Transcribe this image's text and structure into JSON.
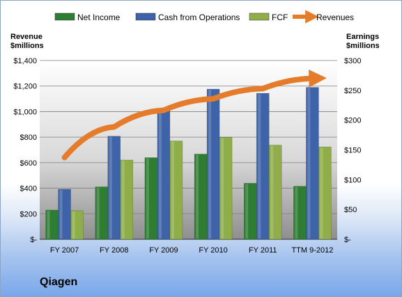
{
  "company": "Qiagen",
  "chart_data": {
    "type": "bar",
    "categories": [
      "FY 2007",
      "FY 2008",
      "FY 2009",
      "FY 2010",
      "FY 2011",
      "TTM 9-2012"
    ],
    "series": [
      {
        "name": "Net Income",
        "axis": "right",
        "color": "#2e7d32",
        "values": [
          49,
          88,
          137,
          143,
          94,
          89
        ]
      },
      {
        "name": "Cash from Operations",
        "axis": "right",
        "color": "#3f63a8",
        "values": [
          84,
          173,
          219,
          252,
          245,
          255
        ]
      },
      {
        "name": "FCF",
        "axis": "right",
        "color": "#8fae4a",
        "values": [
          48,
          133,
          165,
          171,
          158,
          155
        ]
      },
      {
        "name": "Revenues",
        "axis": "left",
        "type": "arrow-line",
        "color": "#e57c2b",
        "values": [
          640,
          880,
          1010,
          1100,
          1180,
          1260
        ]
      }
    ],
    "left_axis": {
      "title_line1": "Revenue",
      "title_line2": "$millions",
      "ylim": [
        0,
        1400
      ],
      "ticks": [
        0,
        200,
        400,
        600,
        800,
        1000,
        1200,
        1400
      ],
      "tick_labels": [
        "$-",
        "$200",
        "$400",
        "$600",
        "$800",
        "$1,000",
        "$1,200",
        "$1,400"
      ]
    },
    "right_axis": {
      "title_line1": "Earnings",
      "title_line2": "$millions",
      "ylim": [
        0,
        300
      ],
      "ticks": [
        0,
        50,
        100,
        150,
        200,
        250,
        300
      ],
      "tick_labels": [
        "$-",
        "$50",
        "$100",
        "$150",
        "$200",
        "$250",
        "$300"
      ]
    },
    "grid": true,
    "legend_position": "top"
  }
}
